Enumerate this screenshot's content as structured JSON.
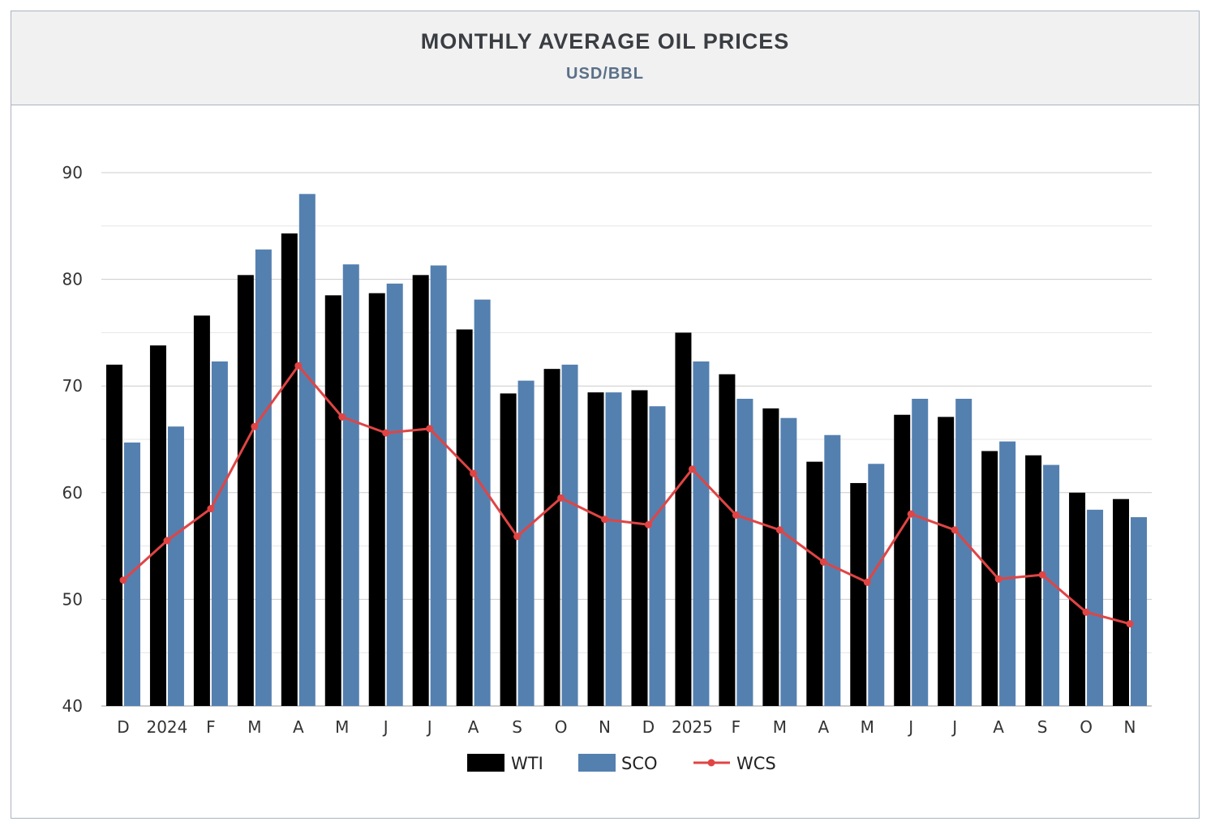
{
  "header": {
    "title": "MONTHLY AVERAGE OIL PRICES",
    "subtitle": "USD/BBL"
  },
  "chart_data": {
    "type": "bar",
    "title": "MONTHLY AVERAGE OIL PRICES",
    "subtitle": "USD/BBL",
    "xlabel": "",
    "ylabel": "",
    "ylim": [
      40,
      90
    ],
    "yticks": [
      40,
      50,
      60,
      70,
      80,
      90
    ],
    "grid": true,
    "legend_position": "bottom-center",
    "categories": [
      "D",
      "2024",
      "F",
      "M",
      "A",
      "M",
      "J",
      "J",
      "A",
      "S",
      "O",
      "N",
      "D",
      "2025",
      "F",
      "M",
      "A",
      "M",
      "J",
      "J",
      "A",
      "S",
      "O",
      "N"
    ],
    "series": [
      {
        "name": "WTI",
        "type": "bar",
        "color": "#000000",
        "values": [
          72.0,
          73.8,
          76.6,
          80.4,
          84.3,
          78.5,
          78.7,
          80.4,
          75.3,
          69.3,
          71.6,
          69.4,
          69.6,
          75.0,
          71.1,
          67.9,
          62.9,
          60.9,
          67.3,
          67.1,
          63.9,
          63.5,
          60.0,
          59.4
        ]
      },
      {
        "name": "SCO",
        "type": "bar",
        "color": "#5480b0",
        "values": [
          64.7,
          66.2,
          72.3,
          82.8,
          88.0,
          81.4,
          79.6,
          81.3,
          78.1,
          70.5,
          72.0,
          69.4,
          68.1,
          72.3,
          68.8,
          67.0,
          65.4,
          62.7,
          68.8,
          68.8,
          64.8,
          62.6,
          58.4,
          57.7
        ]
      },
      {
        "name": "WCS",
        "type": "line",
        "color": "#e04444",
        "values": [
          51.8,
          55.5,
          58.5,
          66.2,
          71.9,
          67.1,
          65.6,
          66.0,
          61.8,
          55.9,
          59.5,
          57.5,
          57.0,
          62.2,
          57.9,
          56.5,
          53.5,
          51.6,
          58.0,
          56.5,
          51.9,
          52.3,
          48.8,
          47.7
        ]
      }
    ]
  }
}
